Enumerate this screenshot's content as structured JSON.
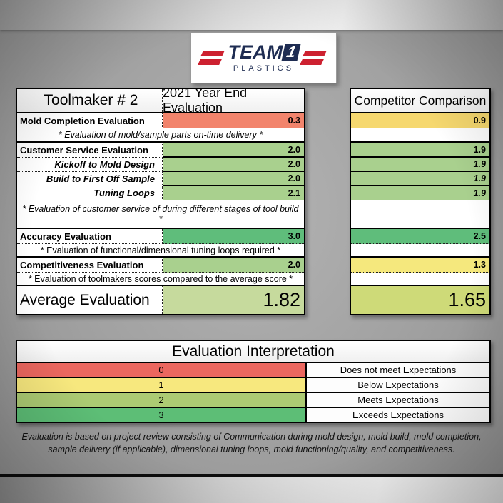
{
  "colors": {
    "salmon": "#F2846C",
    "green": "#A9D08E",
    "dark_green": "#5FBD7B",
    "gold": "#F6D86F",
    "yellow": "#F5E87D",
    "avg_green": "#C6DA9D",
    "avg_yellow_green": "#CEDA78",
    "interp_red": "#EB675F",
    "interp_yellow": "#F7E87E",
    "interp_light_green": "#ACCB73",
    "interp_green": "#5DBE76"
  },
  "logo": {
    "word": "TEAM",
    "digit": "1",
    "subtitle": "PLASTICS"
  },
  "main": {
    "title": "Toolmaker # 2",
    "subtitle": "2021 Year End Evaluation",
    "mold": {
      "label": "Mold Completion Evaluation",
      "value": "0.3"
    },
    "mold_note": "* Evaluation of mold/sample parts on-time delivery *",
    "customer_service": {
      "label": "Customer Service Evaluation",
      "value": "2.0"
    },
    "kickoff": {
      "label": "Kickoff to Mold Design",
      "value": "2.0"
    },
    "build": {
      "label": "Build to First Off Sample",
      "value": "2.0"
    },
    "tuning": {
      "label": "Tuning Loops",
      "value": "2.1"
    },
    "cs_note": "* Evaluation of customer service of during different stages of tool build *",
    "accuracy": {
      "label": "Accuracy Evaluation",
      "value": "3.0"
    },
    "accuracy_note": "* Evaluation of functional/dimensional tuning loops required *",
    "competitiveness": {
      "label": "Competitiveness Evaluation",
      "value": "2.0"
    },
    "competitiveness_note": "* Evaluation of toolmakers scores compared to the average score *",
    "average": {
      "label": "Average Evaluation",
      "value": "1.82"
    }
  },
  "competitor": {
    "title": "Competitor Comparison",
    "mold": "0.9",
    "customer_service": "1.9",
    "kickoff": "1.9",
    "build": "1.9",
    "tuning": "1.9",
    "accuracy": "2.5",
    "competitiveness": "1.3",
    "average": "1.65"
  },
  "interpretation": {
    "title": "Evaluation Interpretation",
    "rows": [
      {
        "score": "0",
        "meaning": "Does not meet Expectations",
        "color": "#EB675F"
      },
      {
        "score": "1",
        "meaning": "Below Expectations",
        "color": "#F7E87E"
      },
      {
        "score": "2",
        "meaning": "Meets Expectations",
        "color": "#ACCB73"
      },
      {
        "score": "3",
        "meaning": "Exceeds Expectations",
        "color": "#5DBE76"
      }
    ]
  },
  "footnote": "Evaluation is based on project review consisting of Communication during mold design, mold build, mold completion, sample delivery (if applicable), dimensional tuning loops, mold functioning/quality, and competitiveness."
}
